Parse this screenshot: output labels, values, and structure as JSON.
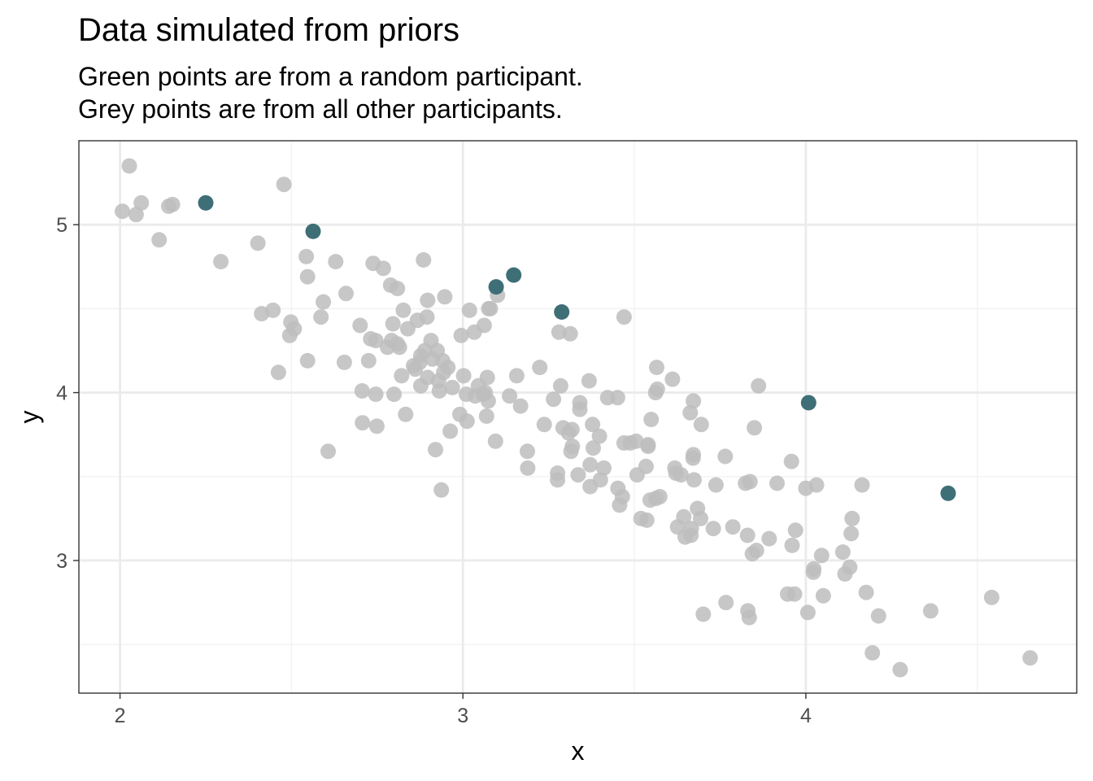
{
  "chart_data": {
    "type": "scatter",
    "title": "Data simulated from priors",
    "subtitle": [
      "Green points are from a random participant.",
      "Grey points are from all other participants."
    ],
    "xlabel": "x",
    "ylabel": "y",
    "xlim": [
      1.88,
      4.79
    ],
    "ylim": [
      2.21,
      5.5
    ],
    "xticks": [
      2,
      3,
      4
    ],
    "yticks": [
      3,
      4,
      5
    ],
    "x_minor_gridlines": [
      2.5,
      3.5,
      4.5
    ],
    "y_minor_gridlines": [
      2.5,
      3.5,
      4.5
    ],
    "grid": true,
    "colors": {
      "highlight": "#3e6f76",
      "other": "#bdbdbd",
      "grid_major": "#ebebeb",
      "grid_minor": "#f2f2f2",
      "panel_border": "#333333"
    },
    "series": [
      {
        "values": [
          [
            2.007,
            5.08
          ],
          [
            2.027,
            5.35
          ],
          [
            2.047,
            5.06
          ],
          [
            2.062,
            5.13
          ],
          [
            2.114,
            4.91
          ],
          [
            2.142,
            5.11
          ],
          [
            2.153,
            5.12
          ],
          [
            2.294,
            4.78
          ],
          [
            2.402,
            4.89
          ],
          [
            2.413,
            4.47
          ],
          [
            2.446,
            4.49
          ],
          [
            2.462,
            4.12
          ],
          [
            2.478,
            5.24
          ],
          [
            2.495,
            4.34
          ],
          [
            2.498,
            4.42
          ],
          [
            2.508,
            4.38
          ],
          [
            2.543,
            4.81
          ],
          [
            2.547,
            4.69
          ],
          [
            2.547,
            4.19
          ],
          [
            2.586,
            4.45
          ],
          [
            2.593,
            4.54
          ],
          [
            2.607,
            3.65
          ],
          [
            2.629,
            4.78
          ],
          [
            2.654,
            4.18
          ],
          [
            2.659,
            4.59
          ],
          [
            2.7,
            4.4
          ],
          [
            2.706,
            4.01
          ],
          [
            2.707,
            3.82
          ],
          [
            2.725,
            4.19
          ],
          [
            2.731,
            4.32
          ],
          [
            2.738,
            4.77
          ],
          [
            2.746,
            4.31
          ],
          [
            2.746,
            3.99
          ],
          [
            2.749,
            3.8
          ],
          [
            2.768,
            4.74
          ],
          [
            2.78,
            4.27
          ],
          [
            2.789,
            4.64
          ],
          [
            2.792,
            4.31
          ],
          [
            2.796,
            4.41
          ],
          [
            2.799,
            3.99
          ],
          [
            2.809,
            4.62
          ],
          [
            2.809,
            4.29
          ],
          [
            2.815,
            4.27
          ],
          [
            2.821,
            4.1
          ],
          [
            2.826,
            4.49
          ],
          [
            2.833,
            3.87
          ],
          [
            2.839,
            4.38
          ],
          [
            2.856,
            4.16
          ],
          [
            2.861,
            4.14
          ],
          [
            2.867,
            4.43
          ],
          [
            2.874,
            4.18
          ],
          [
            2.877,
            4.04
          ],
          [
            2.877,
            4.22
          ],
          [
            2.885,
            4.79
          ],
          [
            2.889,
            4.25
          ],
          [
            2.895,
            4.45
          ],
          [
            2.897,
            4.55
          ],
          [
            2.897,
            4.09
          ],
          [
            2.907,
            4.31
          ],
          [
            2.911,
            4.2
          ],
          [
            2.92,
            3.66
          ],
          [
            2.925,
            4.25
          ],
          [
            2.929,
            4.07
          ],
          [
            2.931,
            4.01
          ],
          [
            2.937,
            3.42
          ],
          [
            2.941,
            4.19
          ],
          [
            2.944,
            4.12
          ],
          [
            2.947,
            4.57
          ],
          [
            2.956,
            4.15
          ],
          [
            2.963,
            3.77
          ],
          [
            2.969,
            4.03
          ],
          [
            2.991,
            3.87
          ],
          [
            2.995,
            4.34
          ],
          [
            3.002,
            4.1
          ],
          [
            3.01,
            3.99
          ],
          [
            3.012,
            3.83
          ],
          [
            3.019,
            4.49
          ],
          [
            3.033,
            4.36
          ],
          [
            3.036,
            3.98
          ],
          [
            3.045,
            4.04
          ],
          [
            3.059,
            3.99
          ],
          [
            3.062,
            4.4
          ],
          [
            3.065,
            4.0
          ],
          [
            3.069,
            3.86
          ],
          [
            3.071,
            4.09
          ],
          [
            3.074,
            3.95
          ],
          [
            3.075,
            4.5
          ],
          [
            3.08,
            4.5
          ],
          [
            3.095,
            3.71
          ],
          [
            3.101,
            4.58
          ],
          [
            3.136,
            3.98
          ],
          [
            3.157,
            4.1
          ],
          [
            3.168,
            3.92
          ],
          [
            3.188,
            3.65
          ],
          [
            3.189,
            3.55
          ],
          [
            3.224,
            4.15
          ],
          [
            3.237,
            3.81
          ],
          [
            3.264,
            3.96
          ],
          [
            3.276,
            3.48
          ],
          [
            3.276,
            3.52
          ],
          [
            3.28,
            4.36
          ],
          [
            3.285,
            4.04
          ],
          [
            3.292,
            3.79
          ],
          [
            3.308,
            3.76
          ],
          [
            3.313,
            4.35
          ],
          [
            3.315,
            3.65
          ],
          [
            3.318,
            3.78
          ],
          [
            3.319,
            3.68
          ],
          [
            3.336,
            3.51
          ],
          [
            3.341,
            3.94
          ],
          [
            3.341,
            3.9
          ],
          [
            3.368,
            4.07
          ],
          [
            3.371,
            3.57
          ],
          [
            3.371,
            3.44
          ],
          [
            3.378,
            3.81
          ],
          [
            3.38,
            3.67
          ],
          [
            3.398,
            3.74
          ],
          [
            3.401,
            3.48
          ],
          [
            3.411,
            3.55
          ],
          [
            3.422,
            3.97
          ],
          [
            3.451,
            3.97
          ],
          [
            3.452,
            3.43
          ],
          [
            3.457,
            3.33
          ],
          [
            3.465,
            3.38
          ],
          [
            3.47,
            4.45
          ],
          [
            3.47,
            3.7
          ],
          [
            3.488,
            3.7
          ],
          [
            3.505,
            3.71
          ],
          [
            3.508,
            3.51
          ],
          [
            3.519,
            3.25
          ],
          [
            3.534,
            3.56
          ],
          [
            3.536,
            3.24
          ],
          [
            3.54,
            3.69
          ],
          [
            3.54,
            3.68
          ],
          [
            3.546,
            3.36
          ],
          [
            3.549,
            3.84
          ],
          [
            3.562,
            4.0
          ],
          [
            3.563,
            3.37
          ],
          [
            3.565,
            4.15
          ],
          [
            3.567,
            4.02
          ],
          [
            3.574,
            3.38
          ],
          [
            3.611,
            4.08
          ],
          [
            3.618,
            3.55
          ],
          [
            3.621,
            3.52
          ],
          [
            3.626,
            3.2
          ],
          [
            3.636,
            3.51
          ],
          [
            3.644,
            3.26
          ],
          [
            3.648,
            3.14
          ],
          [
            3.663,
            3.88
          ],
          [
            3.665,
            3.15
          ],
          [
            3.666,
            3.19
          ],
          [
            3.671,
            3.61
          ],
          [
            3.672,
            3.63
          ],
          [
            3.672,
            3.95
          ],
          [
            3.674,
            3.48
          ],
          [
            3.684,
            3.31
          ],
          [
            3.693,
            3.25
          ],
          [
            3.695,
            3.81
          ],
          [
            3.701,
            2.68
          ],
          [
            3.73,
            3.19
          ],
          [
            3.738,
            3.45
          ],
          [
            3.765,
            3.62
          ],
          [
            3.767,
            2.75
          ],
          [
            3.787,
            3.2
          ],
          [
            3.824,
            3.46
          ],
          [
            3.83,
            3.15
          ],
          [
            3.831,
            2.7
          ],
          [
            3.835,
            2.66
          ],
          [
            3.837,
            3.47
          ],
          [
            3.844,
            3.04
          ],
          [
            3.85,
            3.79
          ],
          [
            3.856,
            3.06
          ],
          [
            3.862,
            4.04
          ],
          [
            3.893,
            3.13
          ],
          [
            3.916,
            3.46
          ],
          [
            3.947,
            2.8
          ],
          [
            3.958,
            3.59
          ],
          [
            3.96,
            3.09
          ],
          [
            3.967,
            2.8
          ],
          [
            3.97,
            3.18
          ],
          [
            4.0,
            3.43
          ],
          [
            4.006,
            2.69
          ],
          [
            4.022,
            2.93
          ],
          [
            4.023,
            2.95
          ],
          [
            4.031,
            3.45
          ],
          [
            4.046,
            3.03
          ],
          [
            4.051,
            2.79
          ],
          [
            4.108,
            3.05
          ],
          [
            4.114,
            2.92
          ],
          [
            4.128,
            2.96
          ],
          [
            4.132,
            3.16
          ],
          [
            4.135,
            3.25
          ],
          [
            4.164,
            3.45
          ],
          [
            4.176,
            2.81
          ],
          [
            4.194,
            2.45
          ],
          [
            4.212,
            2.67
          ],
          [
            4.275,
            2.35
          ],
          [
            4.364,
            2.7
          ],
          [
            4.542,
            2.78
          ],
          [
            4.654,
            2.42
          ]
        ]
      },
      {
        "values": [
          [
            2.25,
            5.13
          ],
          [
            2.563,
            4.96
          ],
          [
            3.097,
            4.63
          ],
          [
            3.148,
            4.7
          ],
          [
            3.288,
            4.48
          ],
          [
            4.008,
            3.94
          ],
          [
            4.415,
            3.4
          ]
        ]
      }
    ]
  }
}
